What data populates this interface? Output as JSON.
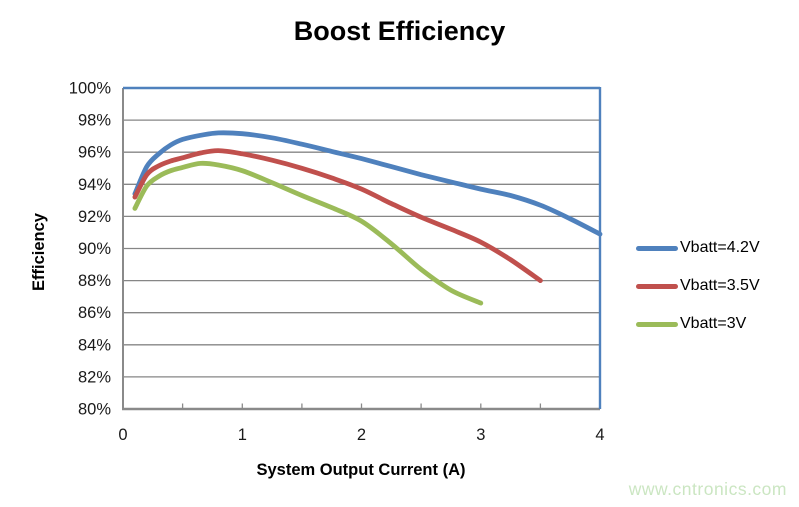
{
  "page": {
    "title": "Boost Efficiency",
    "watermark": "www.cntronics.com"
  },
  "chart_data": {
    "type": "line",
    "title": "Boost Efficiency",
    "xlabel": "System Output Current (A)",
    "ylabel": "Efficiency",
    "xlim": [
      0,
      4
    ],
    "ylim_pct": [
      80,
      100
    ],
    "grid": "horizontal-only",
    "legend_position": "right-middle",
    "x_ticks": [
      {
        "label": "0",
        "value": 0
      },
      {
        "label": "1",
        "value": 1
      },
      {
        "label": "2",
        "value": 2
      },
      {
        "label": "3",
        "value": 3
      },
      {
        "label": "4",
        "value": 4
      }
    ],
    "x_minor_ticks": [
      0.5,
      1.0,
      1.5,
      2.0,
      2.5,
      3.0,
      3.5
    ],
    "y_ticks": [
      {
        "label": "100%",
        "value": 100
      },
      {
        "label": "98%",
        "value": 98
      },
      {
        "label": "96%",
        "value": 96
      },
      {
        "label": "94%",
        "value": 94
      },
      {
        "label": "92%",
        "value": 92
      },
      {
        "label": "90%",
        "value": 90
      },
      {
        "label": "88%",
        "value": 88
      },
      {
        "label": "86%",
        "value": 86
      },
      {
        "label": "84%",
        "value": 84
      },
      {
        "label": "82%",
        "value": 82
      },
      {
        "label": "80%",
        "value": 80
      }
    ],
    "series": [
      {
        "name": "Vbatt=4.2V",
        "color": "#4F81BD",
        "points": [
          [
            0.1,
            93.4
          ],
          [
            0.2,
            95.1
          ],
          [
            0.3,
            95.9
          ],
          [
            0.4,
            96.45
          ],
          [
            0.5,
            96.8
          ],
          [
            0.65,
            97.05
          ],
          [
            0.8,
            97.2
          ],
          [
            1.0,
            97.15
          ],
          [
            1.25,
            96.9
          ],
          [
            1.5,
            96.5
          ],
          [
            1.75,
            96.05
          ],
          [
            2.0,
            95.6
          ],
          [
            2.25,
            95.1
          ],
          [
            2.5,
            94.6
          ],
          [
            2.75,
            94.15
          ],
          [
            3.0,
            93.7
          ],
          [
            3.25,
            93.3
          ],
          [
            3.5,
            92.7
          ],
          [
            3.75,
            91.85
          ],
          [
            4.0,
            90.9
          ]
        ]
      },
      {
        "name": "Vbatt=3.5V",
        "color": "#C0504D",
        "points": [
          [
            0.1,
            93.2
          ],
          [
            0.2,
            94.6
          ],
          [
            0.3,
            95.15
          ],
          [
            0.4,
            95.45
          ],
          [
            0.5,
            95.65
          ],
          [
            0.65,
            95.95
          ],
          [
            0.8,
            96.1
          ],
          [
            1.0,
            95.9
          ],
          [
            1.25,
            95.5
          ],
          [
            1.5,
            95.0
          ],
          [
            1.75,
            94.4
          ],
          [
            2.0,
            93.7
          ],
          [
            2.25,
            92.8
          ],
          [
            2.5,
            91.95
          ],
          [
            2.75,
            91.2
          ],
          [
            3.0,
            90.4
          ],
          [
            3.25,
            89.3
          ],
          [
            3.5,
            88.0
          ]
        ]
      },
      {
        "name": "Vbatt=3V",
        "color": "#9BBB59",
        "points": [
          [
            0.1,
            92.5
          ],
          [
            0.2,
            93.9
          ],
          [
            0.3,
            94.5
          ],
          [
            0.4,
            94.85
          ],
          [
            0.5,
            95.05
          ],
          [
            0.65,
            95.3
          ],
          [
            0.8,
            95.2
          ],
          [
            1.0,
            94.85
          ],
          [
            1.25,
            94.1
          ],
          [
            1.5,
            93.3
          ],
          [
            1.75,
            92.55
          ],
          [
            2.0,
            91.7
          ],
          [
            2.25,
            90.3
          ],
          [
            2.5,
            88.7
          ],
          [
            2.75,
            87.4
          ],
          [
            3.0,
            86.6
          ]
        ]
      }
    ],
    "colors": {
      "grid": "#868686",
      "axis": "#8a8a8a",
      "plot_border_top_right": "#4F81BD",
      "tick_text": "#1a1a1a",
      "watermark": "#cbe6c2"
    }
  }
}
